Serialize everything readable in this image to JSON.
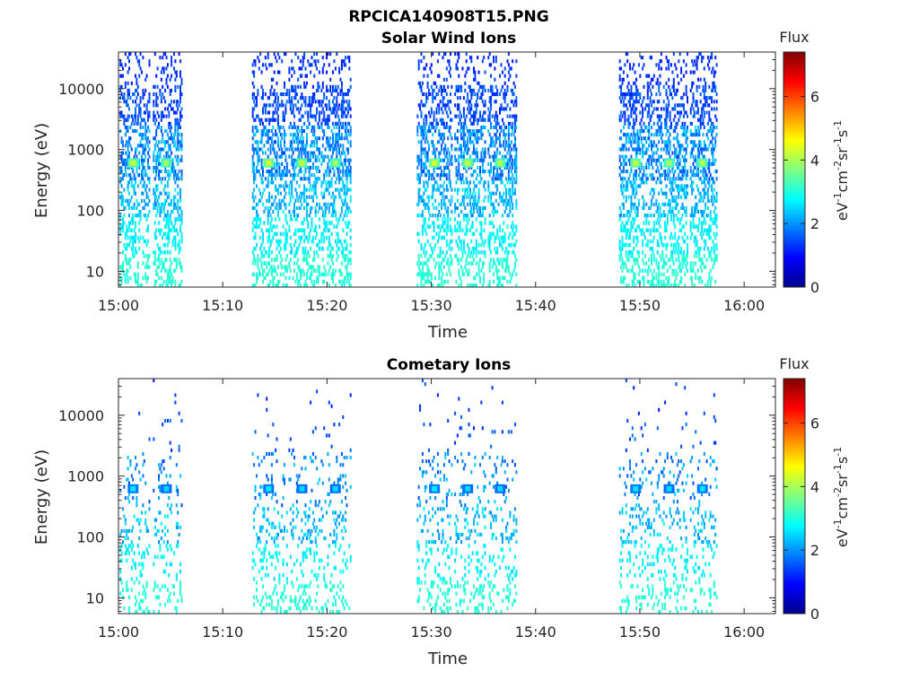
{
  "figure": {
    "title": "RPCICA140908T15.PNG"
  },
  "colorbar": {
    "title": "Flux",
    "label_unit": "eV",
    "label_rest": "cm",
    "label_sr": "sr",
    "label_s": "s",
    "superscripts": [
      "-1",
      "-2",
      "-1",
      "-1"
    ],
    "ticks": [
      "0",
      "2",
      "4",
      "6"
    ],
    "range": [
      0,
      7.4
    ],
    "colormap": "jet"
  },
  "chart_data": [
    {
      "type": "heatmap",
      "title": "Solar Wind Ions",
      "xlabel": "Time",
      "ylabel": "Energy (eV)",
      "x_ticks": [
        "15:00",
        "15:10",
        "15:20",
        "15:30",
        "15:40",
        "15:50",
        "16:00"
      ],
      "x_range_minutes": [
        0,
        63
      ],
      "y_scale": "log",
      "y_ticks": [
        "10",
        "100",
        "1000",
        "10000"
      ],
      "y_range": [
        5.5,
        40000
      ],
      "scan_bursts": [
        {
          "start": 0.1,
          "end": 3.0,
          "peak_minute": 1.4,
          "peak_energy": 600,
          "peak_flux": 4.2
        },
        {
          "start": 3.3,
          "end": 6.1,
          "peak_minute": 4.6,
          "peak_energy": 600,
          "peak_flux": 4.0
        },
        {
          "start": 12.8,
          "end": 16.2,
          "peak_minute": 14.4,
          "peak_energy": 600,
          "peak_flux": 4.3
        },
        {
          "start": 16.3,
          "end": 19.3,
          "peak_minute": 17.6,
          "peak_energy": 600,
          "peak_flux": 4.2
        },
        {
          "start": 19.4,
          "end": 22.3,
          "peak_minute": 20.8,
          "peak_energy": 600,
          "peak_flux": 4.0
        },
        {
          "start": 28.6,
          "end": 32.0,
          "peak_minute": 30.3,
          "peak_energy": 600,
          "peak_flux": 4.3
        },
        {
          "start": 32.2,
          "end": 35.2,
          "peak_minute": 33.5,
          "peak_energy": 600,
          "peak_flux": 4.2
        },
        {
          "start": 35.4,
          "end": 38.2,
          "peak_minute": 36.6,
          "peak_energy": 600,
          "peak_flux": 4.1
        },
        {
          "start": 48.0,
          "end": 51.4,
          "peak_minute": 49.6,
          "peak_energy": 600,
          "peak_flux": 4.2
        },
        {
          "start": 51.5,
          "end": 54.6,
          "peak_minute": 52.8,
          "peak_energy": 600,
          "peak_flux": 4.0
        },
        {
          "start": 54.8,
          "end": 57.4,
          "peak_minute": 56.0,
          "peak_energy": 600,
          "peak_flux": 4.1
        }
      ]
    },
    {
      "type": "heatmap",
      "title": "Cometary Ions",
      "xlabel": "Time",
      "ylabel": "Energy (eV)",
      "x_ticks": [
        "15:00",
        "15:10",
        "15:20",
        "15:30",
        "15:40",
        "15:50",
        "16:00"
      ],
      "x_range_minutes": [
        0,
        63
      ],
      "y_scale": "log",
      "y_ticks": [
        "10",
        "100",
        "1000",
        "10000"
      ],
      "y_range": [
        5.5,
        40000
      ],
      "scan_bursts": [
        {
          "start": 0.1,
          "end": 3.0,
          "peak_minute": 1.4,
          "peak_energy": 620,
          "peak_flux": 2.6
        },
        {
          "start": 3.3,
          "end": 6.1,
          "peak_minute": 4.6,
          "peak_energy": 620,
          "peak_flux": 2.5
        },
        {
          "start": 12.8,
          "end": 16.2,
          "peak_minute": 14.4,
          "peak_energy": 620,
          "peak_flux": 2.6
        },
        {
          "start": 16.3,
          "end": 19.3,
          "peak_minute": 17.6,
          "peak_energy": 620,
          "peak_flux": 2.5
        },
        {
          "start": 19.4,
          "end": 22.3,
          "peak_minute": 20.8,
          "peak_energy": 620,
          "peak_flux": 2.5
        },
        {
          "start": 28.6,
          "end": 32.0,
          "peak_minute": 30.3,
          "peak_energy": 620,
          "peak_flux": 2.6
        },
        {
          "start": 32.2,
          "end": 35.2,
          "peak_minute": 33.5,
          "peak_energy": 620,
          "peak_flux": 2.5
        },
        {
          "start": 35.4,
          "end": 38.2,
          "peak_minute": 36.6,
          "peak_energy": 620,
          "peak_flux": 2.5
        },
        {
          "start": 48.0,
          "end": 51.4,
          "peak_minute": 49.6,
          "peak_energy": 620,
          "peak_flux": 2.6
        },
        {
          "start": 51.5,
          "end": 54.6,
          "peak_minute": 52.8,
          "peak_energy": 620,
          "peak_flux": 2.5
        },
        {
          "start": 54.8,
          "end": 57.4,
          "peak_minute": 56.0,
          "peak_energy": 620,
          "peak_flux": 2.6
        }
      ]
    }
  ]
}
